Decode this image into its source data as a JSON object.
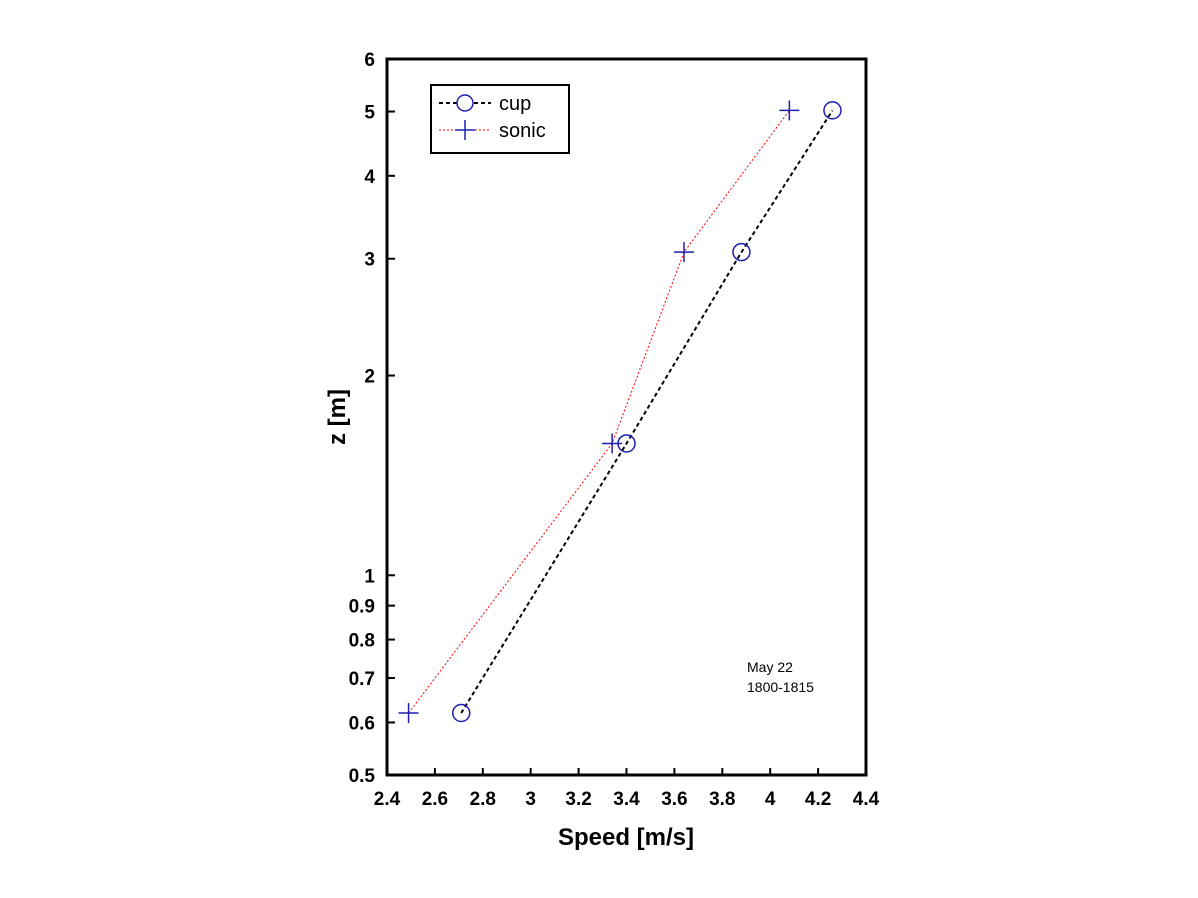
{
  "chart_data": {
    "type": "line",
    "title": "",
    "xlabel": "Speed [m/s]",
    "ylabel": "z [m]",
    "xlim": [
      2.4,
      4.4
    ],
    "ylim": [
      0.5,
      6
    ],
    "y_scale": "log",
    "x_ticks": [
      "2.4",
      "2.6",
      "2.8",
      "3",
      "3.2",
      "3.4",
      "3.6",
      "3.8",
      "4",
      "4.2",
      "4.4"
    ],
    "x_tick_values": [
      2.4,
      2.6,
      2.8,
      3.0,
      3.2,
      3.4,
      3.6,
      3.8,
      4.0,
      4.2,
      4.4
    ],
    "y_ticks": [
      "0.5",
      "0.6",
      "0.7",
      "0.8",
      "0.9",
      "1",
      "2",
      "3",
      "4",
      "5",
      "6"
    ],
    "y_tick_values": [
      0.5,
      0.6,
      0.7,
      0.8,
      0.9,
      1,
      2,
      3,
      4,
      5,
      6
    ],
    "grid": false,
    "legend_position": "top-left",
    "series": [
      {
        "name": "cup",
        "marker": "circle",
        "line_style": "dashed",
        "line_color": "#000000",
        "marker_color": "#1f1fb0",
        "points": [
          {
            "x": 2.71,
            "y": 0.62
          },
          {
            "x": 3.4,
            "y": 1.58
          },
          {
            "x": 3.88,
            "y": 3.07
          },
          {
            "x": 4.26,
            "y": 5.02
          }
        ]
      },
      {
        "name": "sonic",
        "marker": "plus",
        "line_style": "dotted",
        "line_color": "#ff0000",
        "marker_color": "#1f1fb0",
        "points": [
          {
            "x": 2.49,
            "y": 0.62
          },
          {
            "x": 3.34,
            "y": 1.58
          },
          {
            "x": 3.64,
            "y": 3.07
          },
          {
            "x": 4.08,
            "y": 5.02
          }
        ]
      }
    ],
    "annotations": [
      "May 22",
      "1800-1815"
    ]
  }
}
